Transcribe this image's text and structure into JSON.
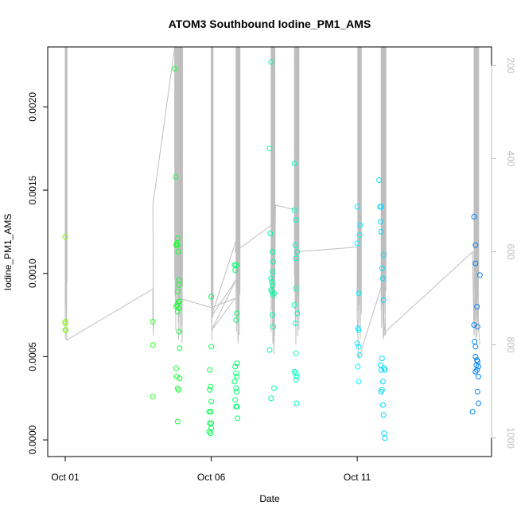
{
  "chart_data": {
    "type": "scatter",
    "title": "ATOM3 Southbound Iodine_PM1_AMS",
    "xlabel": "Date",
    "ylabel": "Iodine_PM1_AMS",
    "x_ticks": [
      "Oct 01",
      "Oct 06",
      "Oct 11"
    ],
    "y_ticks": [
      "0.0000",
      "0.0005",
      "0.0010",
      "0.0015",
      "0.0020"
    ],
    "y2_ticks": [
      "200",
      "400",
      "600",
      "800",
      "1000"
    ],
    "ylim": [
      -0.0001,
      0.00236
    ],
    "y2lim": [
      1040,
      160
    ],
    "xlim_days": [
      -0.6,
      14.6
    ],
    "secondary_line_color": "#bebebe",
    "color_scale": [
      "#80ff00",
      "#00ff40",
      "#00ffff",
      "#0080ff"
    ],
    "points": [
      [
        0.0,
        0.00122
      ],
      [
        0.0,
        0.00071
      ],
      [
        0.0,
        0.0007
      ],
      [
        0.0,
        0.00066
      ],
      [
        0.02,
        0.00066
      ],
      [
        3.0,
        0.00057
      ],
      [
        3.0,
        0.00071
      ],
      [
        3.0,
        0.00026
      ],
      [
        3.75,
        0.00223
      ],
      [
        3.78,
        0.00158
      ],
      [
        3.8,
        0.00117
      ],
      [
        3.82,
        0.00118
      ],
      [
        3.85,
        0.00121
      ],
      [
        3.85,
        0.00117
      ],
      [
        3.87,
        0.00113
      ],
      [
        3.9,
        0.00096
      ],
      [
        3.9,
        0.00093
      ],
      [
        3.85,
        0.00089
      ],
      [
        3.88,
        0.00083
      ],
      [
        3.83,
        0.00081
      ],
      [
        3.8,
        0.0008
      ],
      [
        3.9,
        0.00079
      ],
      [
        3.92,
        0.00083
      ],
      [
        3.85,
        0.00077
      ],
      [
        3.9,
        0.00065
      ],
      [
        3.92,
        0.00055
      ],
      [
        3.8,
        0.00043
      ],
      [
        3.82,
        0.00038
      ],
      [
        3.85,
        0.00031
      ],
      [
        3.88,
        0.0003
      ],
      [
        3.92,
        0.00037
      ],
      [
        3.85,
        0.00011
      ],
      [
        5.0,
        0.00086
      ],
      [
        5.0,
        0.00056
      ],
      [
        4.95,
        0.00042
      ],
      [
        4.98,
        0.00032
      ],
      [
        4.95,
        0.0003
      ],
      [
        5.0,
        0.00023
      ],
      [
        4.93,
        0.00017
      ],
      [
        4.98,
        0.00017
      ],
      [
        4.95,
        0.0001
      ],
      [
        5.0,
        0.0001
      ],
      [
        4.93,
        5e-05
      ],
      [
        4.98,
        4e-05
      ],
      [
        5.0,
        7e-05
      ],
      [
        5.8,
        0.00105
      ],
      [
        5.85,
        0.00105
      ],
      [
        5.82,
        0.00102
      ],
      [
        5.88,
        0.00076
      ],
      [
        5.85,
        0.00072
      ],
      [
        5.88,
        0.00046
      ],
      [
        5.82,
        0.00044
      ],
      [
        5.85,
        0.0004
      ],
      [
        5.87,
        0.00038
      ],
      [
        5.8,
        0.00035
      ],
      [
        5.85,
        0.00031
      ],
      [
        5.87,
        0.00029
      ],
      [
        5.82,
        0.00024
      ],
      [
        5.85,
        0.0002
      ],
      [
        5.88,
        0.0002
      ],
      [
        5.9,
        0.00013
      ],
      [
        7.05,
        0.00227
      ],
      [
        7.0,
        0.00175
      ],
      [
        7.02,
        0.00124
      ],
      [
        7.1,
        0.00113
      ],
      [
        7.12,
        0.00107
      ],
      [
        7.1,
        0.00101
      ],
      [
        7.05,
        0.00097
      ],
      [
        7.08,
        0.00095
      ],
      [
        7.1,
        0.00093
      ],
      [
        7.05,
        0.0009
      ],
      [
        7.08,
        0.00089
      ],
      [
        7.12,
        0.00087
      ],
      [
        7.15,
        0.00088
      ],
      [
        7.1,
        0.00075
      ],
      [
        7.12,
        0.00068
      ],
      [
        7.0,
        0.00054
      ],
      [
        7.15,
        0.00031
      ],
      [
        7.05,
        0.00025
      ],
      [
        7.85,
        0.00166
      ],
      [
        7.85,
        0.00138
      ],
      [
        7.9,
        0.00132
      ],
      [
        7.88,
        0.00117
      ],
      [
        7.95,
        0.00113
      ],
      [
        7.9,
        0.00109
      ],
      [
        7.9,
        0.00091
      ],
      [
        7.85,
        0.00081
      ],
      [
        7.95,
        0.00076
      ],
      [
        7.88,
        0.0007
      ],
      [
        7.9,
        0.00052
      ],
      [
        7.85,
        0.00041
      ],
      [
        7.9,
        0.0004
      ],
      [
        7.92,
        0.00038
      ],
      [
        7.9,
        0.00036
      ],
      [
        7.92,
        0.00022
      ],
      [
        10.0,
        0.0014
      ],
      [
        10.1,
        0.00129
      ],
      [
        10.0,
        0.00118
      ],
      [
        10.08,
        0.00123
      ],
      [
        10.05,
        0.00088
      ],
      [
        10.02,
        0.00067
      ],
      [
        10.05,
        0.00066
      ],
      [
        10.0,
        0.00058
      ],
      [
        10.05,
        0.00056
      ],
      [
        10.08,
        0.00051
      ],
      [
        10.02,
        0.00044
      ],
      [
        10.05,
        0.00035
      ],
      [
        10.75,
        0.00156
      ],
      [
        10.78,
        0.0014
      ],
      [
        10.82,
        0.0014
      ],
      [
        10.8,
        0.00131
      ],
      [
        10.82,
        0.00125
      ],
      [
        10.9,
        0.00111
      ],
      [
        10.85,
        0.00103
      ],
      [
        10.88,
        0.00097
      ],
      [
        10.9,
        0.00084
      ],
      [
        10.85,
        0.00049
      ],
      [
        10.8,
        0.00045
      ],
      [
        10.82,
        0.00042
      ],
      [
        10.92,
        0.00043
      ],
      [
        10.95,
        0.00042
      ],
      [
        10.88,
        0.00035
      ],
      [
        10.85,
        0.0003
      ],
      [
        10.82,
        0.00029
      ],
      [
        10.88,
        0.00021
      ],
      [
        10.9,
        0.00015
      ],
      [
        10.92,
        4e-05
      ],
      [
        10.95,
        1e-05
      ],
      [
        14.0,
        0.00134
      ],
      [
        14.05,
        0.00117
      ],
      [
        14.05,
        0.00106
      ],
      [
        14.2,
        0.00099
      ],
      [
        14.1,
        0.0008
      ],
      [
        14.0,
        0.00069
      ],
      [
        14.12,
        0.00068
      ],
      [
        14.02,
        0.00059
      ],
      [
        14.05,
        0.00056
      ],
      [
        14.05,
        0.0005
      ],
      [
        14.1,
        0.00048
      ],
      [
        14.12,
        0.00047
      ],
      [
        14.08,
        0.00045
      ],
      [
        14.15,
        0.00044
      ],
      [
        14.1,
        0.00042
      ],
      [
        14.05,
        0.00041
      ],
      [
        14.15,
        0.00038
      ],
      [
        14.12,
        0.00029
      ],
      [
        14.15,
        0.00022
      ],
      [
        13.95,
        0.00017
      ]
    ]
  }
}
